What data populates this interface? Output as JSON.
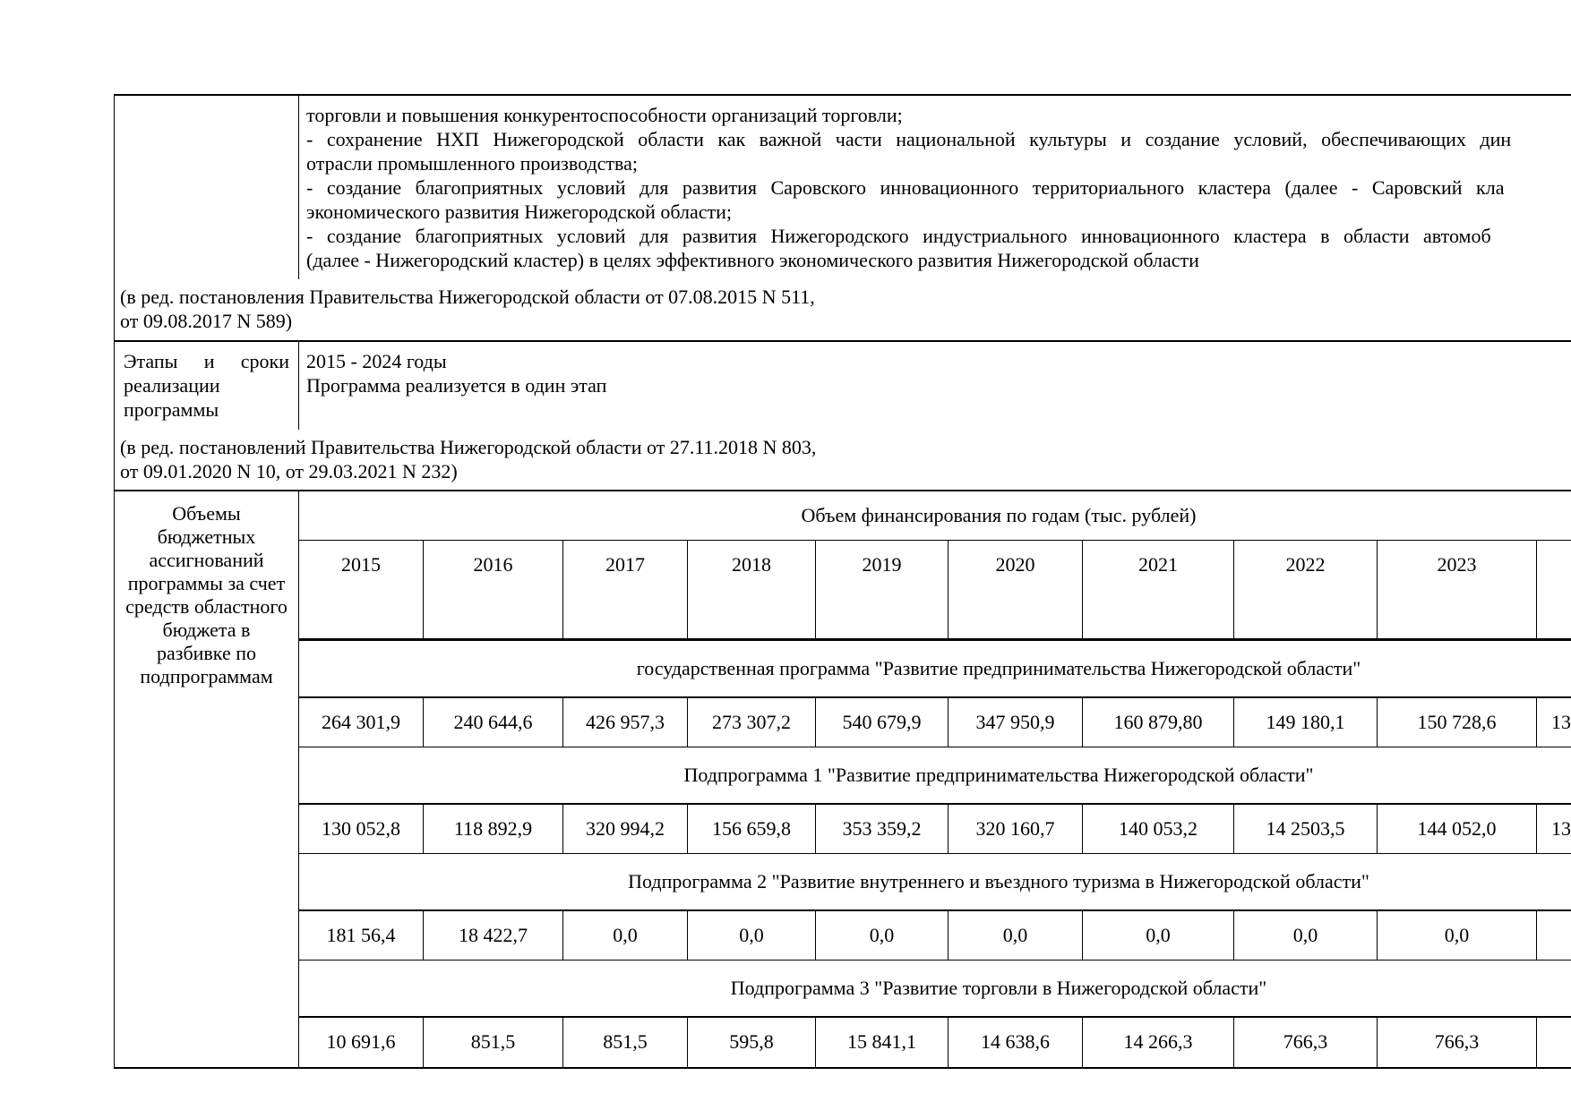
{
  "row1": {
    "lines": [
      "торговли и повышения конкурентоспособности организаций торговли;",
      "- сохранение НХП Нижегородской области как важной части национальной культуры и создание условий, обеспечивающих дин",
      "отрасли промышленного производства;",
      "- создание благоприятных условий для развития Саровского инновационного территориального кластера (далее - Саровский кла",
      "экономического развития Нижегородской области;",
      "- создание благоприятных условий для развития Нижегородского индустриального инновационного кластера в области автомоб",
      "(далее - Нижегородский кластер) в целях эффективного экономического развития Нижегородской области"
    ]
  },
  "note1": {
    "lines": [
      "(в ред. постановления Правительства Нижегородской области от 07.08.2015 N 511,",
      "от 09.08.2017 N 589)"
    ]
  },
  "stages": {
    "label": "Этапы и сроки реализации программы",
    "value_lines": [
      "2015 - 2024 годы",
      "Программа реализуется в один этап"
    ]
  },
  "note2": {
    "lines": [
      "(в ред. постановлений Правительства Нижегородской области от 27.11.2018 N 803,",
      "от 09.01.2020 N 10, от 29.03.2021 N 232)"
    ]
  },
  "funding": {
    "label": "Объемы бюджетных ассигнований программы за счет средств областного бюджета в разбивке по подпрограммам",
    "header": "Объем финансирования по годам (тыс. рублей)",
    "years": [
      "2015",
      "2016",
      "2017",
      "2018",
      "2019",
      "2020",
      "2021",
      "2022",
      "2023",
      ""
    ],
    "bands": [
      {
        "title": "государственная программа \"Развитие предпринимательства Нижегородской области\"",
        "values": [
          "264 301,9",
          "240 644,6",
          "426 957,3",
          "273 307,2",
          "540 679,9",
          "347 950,9",
          "160 879,80",
          "149 180,1",
          "150 728,6",
          "13"
        ]
      },
      {
        "title": "Подпрограмма 1 \"Развитие предпринимательства Нижегородской области\"",
        "values": [
          "130 052,8",
          "118 892,9",
          "320 994,2",
          "156 659,8",
          "353 359,2",
          "320 160,7",
          "140 053,2",
          "14 2503,5",
          "144 052,0",
          "13"
        ]
      },
      {
        "title": "Подпрограмма 2 \"Развитие внутреннего и въездного туризма в Нижегородской области\"",
        "values": [
          "181 56,4",
          "18 422,7",
          "0,0",
          "0,0",
          "0,0",
          "0,0",
          "0,0",
          "0,0",
          "0,0",
          ""
        ]
      },
      {
        "title": "Подпрограмма 3 \"Развитие торговли в Нижегородской области\"",
        "values": [
          "10 691,6",
          "851,5",
          "851,5",
          "595,8",
          "15 841,1",
          "14 638,6",
          "14 266,3",
          "766,3",
          "766,3",
          ""
        ]
      }
    ]
  }
}
